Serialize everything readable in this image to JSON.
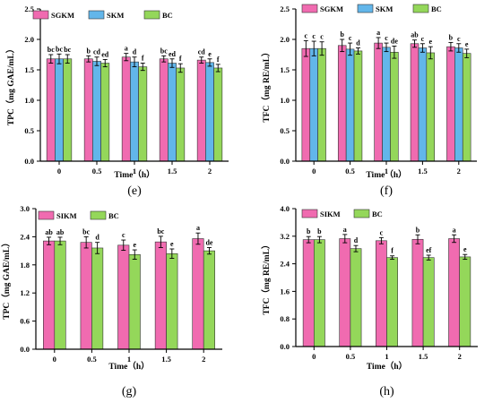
{
  "colors": {
    "SGKM": "#f06bb0",
    "SKM": "#62b6ea",
    "SIKM": "#f06bb0",
    "BC": "#94d75a",
    "axis": "#000000"
  },
  "chart_data": [
    {
      "panel": "(e)",
      "type": "bar",
      "xlabel": "Time（h）",
      "ylabel": "TPC（mg GAE/mL）",
      "ylim": [
        0,
        2.5
      ],
      "yticks": [
        "0.0",
        "0.5",
        "1.0",
        "1.5",
        "2.0",
        "2.5"
      ],
      "categories": [
        "0",
        "0.5",
        "1",
        "1.5",
        "2"
      ],
      "legend": "top-left",
      "series": [
        {
          "name": "SGKM",
          "color": "SGKM",
          "values": [
            1.68,
            1.68,
            1.71,
            1.68,
            1.66
          ],
          "errors": [
            0.07,
            0.05,
            0.06,
            0.05,
            0.05
          ],
          "labels": [
            "bc",
            "b",
            "a",
            "bc",
            "cd"
          ]
        },
        {
          "name": "SKM",
          "color": "SKM",
          "values": [
            1.68,
            1.64,
            1.63,
            1.61,
            1.62
          ],
          "errors": [
            0.08,
            0.07,
            0.08,
            0.07,
            0.06
          ],
          "labels": [
            "bc",
            "cd",
            "d",
            "ed",
            "e"
          ]
        },
        {
          "name": "BC",
          "color": "BC",
          "values": [
            1.68,
            1.61,
            1.55,
            1.53,
            1.53
          ],
          "errors": [
            0.07,
            0.06,
            0.06,
            0.07,
            0.06
          ],
          "labels": [
            "bc",
            "ed",
            "f",
            "f",
            "f"
          ]
        }
      ]
    },
    {
      "panel": "(f)",
      "type": "bar",
      "xlabel": "Time（h）",
      "ylabel": "TFC（mg RE/mL）",
      "ylim": [
        0,
        2.5
      ],
      "yticks": [
        "0.0",
        "0.5",
        "1.0",
        "1.5",
        "2.0",
        "2.5"
      ],
      "categories": [
        "0",
        "0.5",
        "1",
        "1.5",
        "2"
      ],
      "legend": "top-center",
      "series": [
        {
          "name": "SGKM",
          "color": "SGKM",
          "values": [
            1.85,
            1.9,
            1.94,
            1.93,
            1.88
          ],
          "errors": [
            0.13,
            0.1,
            0.09,
            0.06,
            0.07
          ],
          "labels": [
            "c",
            "b",
            "a",
            "ab",
            "b"
          ]
        },
        {
          "name": "SKM",
          "color": "SKM",
          "values": [
            1.85,
            1.84,
            1.87,
            1.86,
            1.86
          ],
          "errors": [
            0.12,
            0.1,
            0.07,
            0.07,
            0.07
          ],
          "labels": [
            "c",
            "c",
            "c",
            "c",
            "c"
          ]
        },
        {
          "name": "BC",
          "color": "BC",
          "values": [
            1.85,
            1.81,
            1.79,
            1.78,
            1.77
          ],
          "errors": [
            0.11,
            0.05,
            0.1,
            0.1,
            0.07
          ],
          "labels": [
            "c",
            "d",
            "de",
            "e",
            "e"
          ]
        }
      ]
    },
    {
      "panel": "(g)",
      "type": "bar",
      "xlabel": "Time（h）",
      "ylabel": "TPC（mg GAE/mL）",
      "ylim": [
        0,
        3.0
      ],
      "yticks": [
        "0.0",
        "0.6",
        "1.2",
        "1.8",
        "2.4",
        "3.0"
      ],
      "categories": [
        "0",
        "0.5",
        "1",
        "1.5",
        "2"
      ],
      "legend": "top-left",
      "series": [
        {
          "name": "SIKM",
          "color": "SIKM",
          "values": [
            2.31,
            2.28,
            2.22,
            2.29,
            2.36
          ],
          "errors": [
            0.08,
            0.12,
            0.11,
            0.12,
            0.12
          ],
          "labels": [
            "ab",
            "bc",
            "c",
            "bc",
            "a"
          ]
        },
        {
          "name": "BC",
          "color": "BC",
          "values": [
            2.31,
            2.16,
            2.02,
            2.04,
            2.1
          ],
          "errors": [
            0.08,
            0.12,
            0.1,
            0.1,
            0.07
          ],
          "labels": [
            "ab",
            "d",
            "e",
            "e",
            "de"
          ]
        }
      ]
    },
    {
      "panel": "(h)",
      "type": "bar",
      "xlabel": "Time（h）",
      "ylabel": "TFC（mg RE/mL）",
      "ylim": [
        0,
        4.0
      ],
      "yticks": [
        "0.0",
        "0.8",
        "1.6",
        "2.4",
        "3.2",
        "4.0"
      ],
      "categories": [
        "0",
        "0.5",
        "1",
        "1.5",
        "2"
      ],
      "legend": "top-left",
      "series": [
        {
          "name": "SIKM",
          "color": "SIKM",
          "values": [
            3.1,
            3.13,
            3.07,
            3.11,
            3.13
          ],
          "errors": [
            0.09,
            0.12,
            0.09,
            0.13,
            0.11
          ],
          "labels": [
            "b",
            "a",
            "c",
            "b",
            "a"
          ]
        },
        {
          "name": "BC",
          "color": "BC",
          "values": [
            3.1,
            2.84,
            2.58,
            2.58,
            2.6
          ],
          "errors": [
            0.09,
            0.09,
            0.05,
            0.07,
            0.07
          ],
          "labels": [
            "b",
            "d",
            "f",
            "ef",
            "e"
          ]
        }
      ]
    }
  ]
}
